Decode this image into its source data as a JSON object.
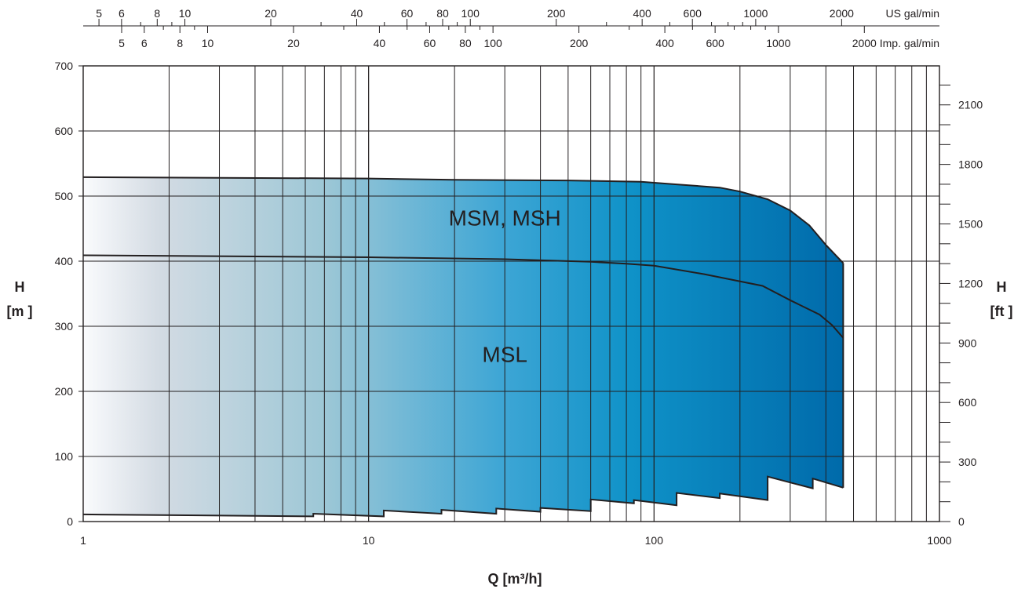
{
  "chart_data": {
    "type": "area",
    "x_scale": "log",
    "xlim": [
      1,
      1000
    ],
    "ylim": [
      0,
      700
    ],
    "xlabel": "Q [m³/h]",
    "ylabel_left": [
      "H",
      "[m ]"
    ],
    "ylabel_right": [
      "H",
      "[ft ]"
    ],
    "x_ticks_major": [
      1,
      10,
      100,
      1000
    ],
    "y_ticks_left": [
      0,
      100,
      200,
      300,
      400,
      500,
      600,
      700
    ],
    "y_ticks_right": [
      0,
      300,
      600,
      900,
      1200,
      1500,
      1800,
      2100
    ],
    "y_right_factor": 3.28084,
    "top_scales": [
      {
        "unit": "US gal/min",
        "factor": 0.2271247,
        "labels": [
          5,
          6,
          8,
          10,
          20,
          40,
          60,
          80,
          100,
          200,
          400,
          600,
          1000,
          2000
        ],
        "minor": [
          7,
          9,
          30,
          50,
          70,
          90,
          300,
          500,
          700,
          800,
          900
        ]
      },
      {
        "unit": "Imp. gal/min",
        "factor": 0.2727654,
        "labels": [
          5,
          6,
          8,
          10,
          20,
          40,
          60,
          80,
          100,
          200,
          400,
          600,
          1000,
          2000
        ],
        "minor": [
          7,
          9,
          30,
          50,
          70,
          90,
          300,
          500,
          700,
          800,
          900
        ]
      }
    ],
    "regions": [
      {
        "name": "MSM, MSH",
        "label_at": [
          30,
          455
        ]
      },
      {
        "name": "MSL",
        "label_at": [
          30,
          245
        ]
      }
    ],
    "series": [
      {
        "role": "upper-envelope",
        "x": [
          1,
          10,
          20,
          50,
          90,
          120,
          170,
          200,
          250,
          300,
          350,
          400,
          460
        ],
        "y": [
          529,
          527,
          525,
          524,
          522,
          518,
          513,
          507,
          495,
          478,
          455,
          425,
          397
        ]
      },
      {
        "role": "divider",
        "x": [
          1,
          10,
          30,
          60,
          80,
          100,
          150,
          240,
          300,
          380,
          420,
          460
        ],
        "y": [
          409,
          406,
          403,
          399,
          396,
          393,
          380,
          362,
          340,
          318,
          302,
          282
        ]
      },
      {
        "role": "lower-envelope",
        "x": [
          1,
          6.4,
          6.4,
          11.3,
          11.3,
          18,
          18,
          28,
          28,
          40,
          40,
          60,
          60,
          85,
          85,
          120,
          120,
          170,
          170,
          250,
          250,
          360,
          360,
          460
        ],
        "y": [
          11,
          8,
          12,
          8,
          17,
          12,
          18,
          12,
          20,
          15,
          21,
          16,
          34,
          28,
          33,
          25,
          44,
          36,
          43,
          33,
          69,
          51,
          66,
          52
        ]
      }
    ],
    "colors": {
      "fill_left": "#fafbfd",
      "fill_1": "#d3dbe3",
      "fill_2": "#9cc7d6",
      "fill_3": "#3ea6d5",
      "fill_4": "#0f92c8",
      "fill_right": "#006aaa",
      "ink": "#231f20"
    }
  }
}
